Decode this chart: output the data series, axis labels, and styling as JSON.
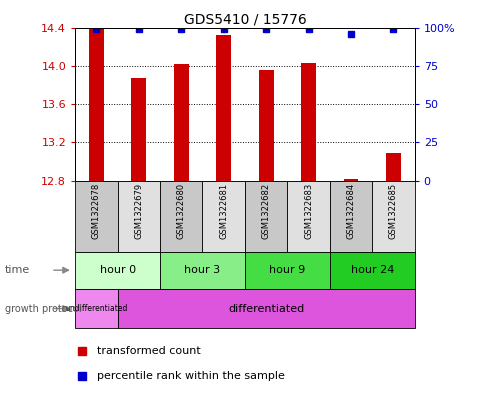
{
  "title": "GDS5410 / 15776",
  "samples": [
    "GSM1322678",
    "GSM1322679",
    "GSM1322680",
    "GSM1322681",
    "GSM1322682",
    "GSM1322683",
    "GSM1322684",
    "GSM1322685"
  ],
  "transformed_count": [
    14.38,
    13.87,
    14.02,
    14.32,
    13.96,
    14.03,
    12.82,
    13.09
  ],
  "percentile_rank": [
    99,
    99,
    99,
    99,
    99,
    99,
    96,
    99
  ],
  "ylim_left": [
    12.8,
    14.4
  ],
  "ylim_right": [
    0,
    100
  ],
  "yticks_left": [
    12.8,
    13.2,
    13.6,
    14.0,
    14.4
  ],
  "yticks_right": [
    0,
    25,
    50,
    75,
    100
  ],
  "ytick_labels_right": [
    "0",
    "25",
    "50",
    "75",
    "100%"
  ],
  "bar_color": "#cc0000",
  "dot_color": "#0000cc",
  "time_groups": [
    {
      "label": "hour 0",
      "start": 0,
      "end": 1,
      "color": "#ccffcc"
    },
    {
      "label": "hour 3",
      "start": 2,
      "end": 3,
      "color": "#88ee88"
    },
    {
      "label": "hour 9",
      "start": 4,
      "end": 5,
      "color": "#44dd44"
    },
    {
      "label": "hour 24",
      "start": 6,
      "end": 7,
      "color": "#22cc22"
    }
  ],
  "undiff_color": "#ee88ee",
  "diff_color": "#dd55dd",
  "sample_colors_alt": [
    "#c8c8c8",
    "#e0e0e0"
  ],
  "title_color": "#000000",
  "left_tick_color": "#cc0000",
  "right_tick_color": "#0000cc",
  "bar_width": 0.35
}
